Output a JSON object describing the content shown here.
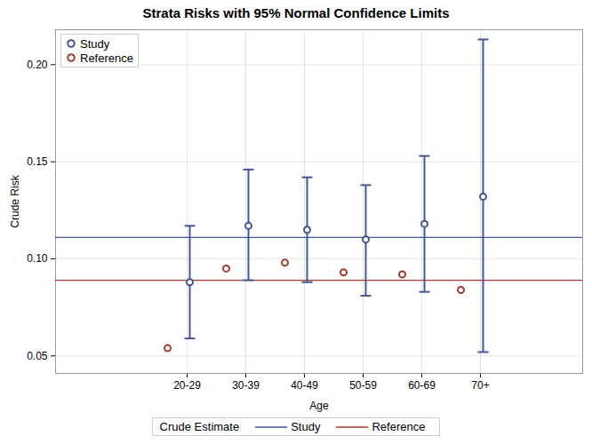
{
  "chart_data": {
    "type": "scatter",
    "title": "Strata Risks with 95% Normal Confidence Limits",
    "x_label": "Age",
    "y_label": "Crude Risk",
    "categories": [
      "20-29",
      "30-39",
      "40-49",
      "50-59",
      "60-69",
      "70+"
    ],
    "series": [
      {
        "name": "Study",
        "color": "#445694",
        "marker": "circle",
        "values": [
          0.088,
          0.117,
          0.115,
          0.11,
          0.118,
          0.132
        ],
        "lower": [
          0.059,
          0.089,
          0.088,
          0.081,
          0.083,
          0.052
        ],
        "upper": [
          0.117,
          0.146,
          0.142,
          0.138,
          0.153,
          0.213
        ]
      },
      {
        "name": "Reference",
        "color": "#A23A2E",
        "marker": "circle",
        "values": [
          0.054,
          0.095,
          0.098,
          0.093,
          0.092,
          0.084
        ]
      }
    ],
    "crude_estimate": {
      "title": "Crude Estimate",
      "series": [
        {
          "name": "Study",
          "color": "#445694",
          "value": 0.111
        },
        {
          "name": "Reference",
          "color": "#A23A2E",
          "value": 0.089
        }
      ]
    },
    "ylim": [
      0.041,
      0.218
    ],
    "yticks": [
      {
        "value": 0.05,
        "label": "0.05"
      },
      {
        "value": 0.1,
        "label": "0.10"
      },
      {
        "value": 0.15,
        "label": "0.15"
      },
      {
        "value": 0.2,
        "label": "0.20"
      }
    ],
    "grid": true,
    "legend": "top-left"
  }
}
